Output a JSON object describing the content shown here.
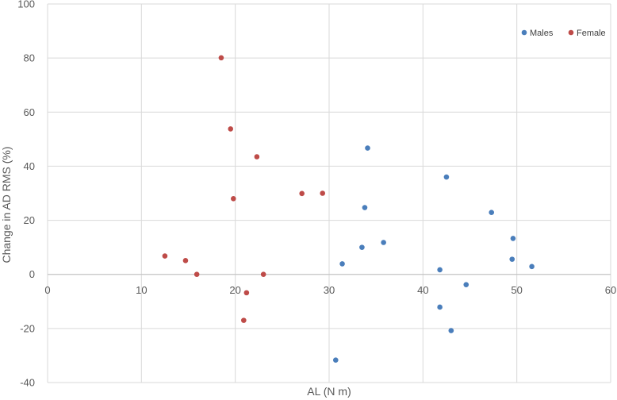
{
  "chart_data": {
    "type": "scatter",
    "xlabel": "AL (N m)",
    "ylabel": "Change in AD RMS (%)",
    "xlim": [
      0,
      60
    ],
    "ylim": [
      -40,
      100
    ],
    "x_ticks": [
      0,
      10,
      20,
      30,
      40,
      50,
      60
    ],
    "y_ticks": [
      -40,
      -20,
      0,
      20,
      40,
      60,
      80,
      100
    ],
    "grid": true,
    "legend_position": "top-right",
    "series": [
      {
        "name": "Males",
        "color": "#4a7ebb",
        "points": [
          {
            "x": 34.1,
            "y": 46.7
          },
          {
            "x": 42.5,
            "y": 36.0
          },
          {
            "x": 33.8,
            "y": 24.7
          },
          {
            "x": 47.3,
            "y": 22.9
          },
          {
            "x": 49.6,
            "y": 13.3
          },
          {
            "x": 35.8,
            "y": 11.8
          },
          {
            "x": 33.5,
            "y": 10.0
          },
          {
            "x": 49.5,
            "y": 5.6
          },
          {
            "x": 31.4,
            "y": 3.9
          },
          {
            "x": 51.6,
            "y": 2.9
          },
          {
            "x": 41.8,
            "y": 1.7
          },
          {
            "x": 44.6,
            "y": -3.8
          },
          {
            "x": 41.8,
            "y": -12.1
          },
          {
            "x": 43.0,
            "y": -20.8
          },
          {
            "x": 30.7,
            "y": -31.7
          }
        ]
      },
      {
        "name": "Female",
        "color": "#be4b48",
        "points": [
          {
            "x": 18.5,
            "y": 80.1
          },
          {
            "x": 19.5,
            "y": 53.8
          },
          {
            "x": 22.3,
            "y": 43.5
          },
          {
            "x": 29.3,
            "y": 30.0
          },
          {
            "x": 27.1,
            "y": 29.9
          },
          {
            "x": 19.8,
            "y": 28.0
          },
          {
            "x": 12.5,
            "y": 6.8
          },
          {
            "x": 14.7,
            "y": 5.1
          },
          {
            "x": 15.9,
            "y": 0.0
          },
          {
            "x": 23.0,
            "y": 0.0
          },
          {
            "x": 21.2,
            "y": -6.8
          },
          {
            "x": 20.9,
            "y": -17.0
          }
        ]
      }
    ]
  }
}
